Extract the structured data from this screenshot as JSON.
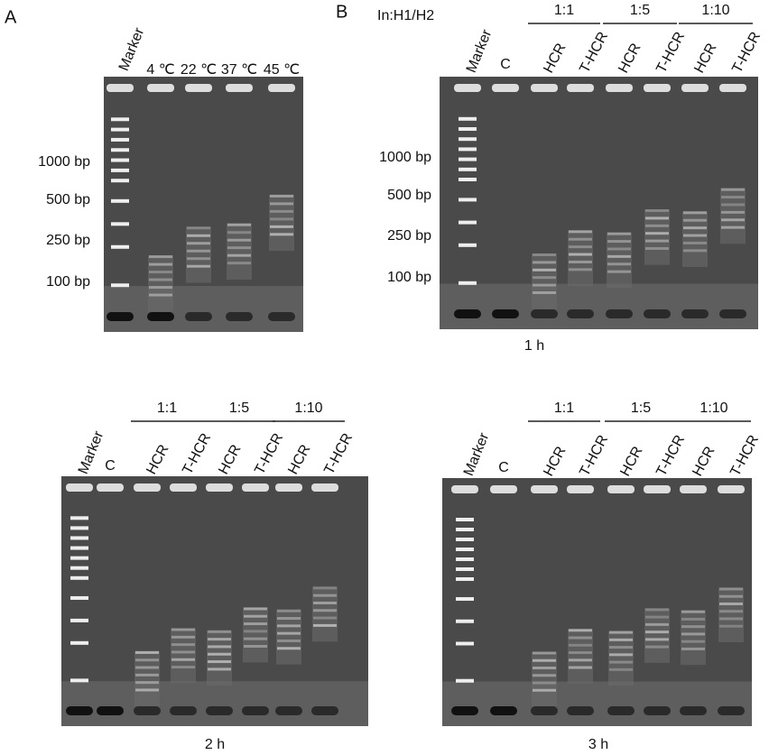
{
  "panels": [
    {
      "letter": "A",
      "marker": "Marker",
      "lanes": [
        "4 ℃",
        "22 ℃",
        "37 ℃",
        "45 ℃"
      ],
      "size_labels": [
        "1000 bp",
        "500 bp",
        "250 bp",
        "100 bp"
      ]
    },
    {
      "letter": "B",
      "condition": "In:H1/H2",
      "marker": "Marker",
      "control": "C",
      "groups": [
        {
          "ratio": "1:1",
          "lanes": [
            "HCR",
            "T-HCR"
          ]
        },
        {
          "ratio": "1:5",
          "lanes": [
            "HCR",
            "T-HCR"
          ]
        },
        {
          "ratio": "1:10",
          "lanes": [
            "HCR",
            "T-HCR"
          ]
        }
      ],
      "size_labels": [
        "1000 bp",
        "500 bp",
        "250 bp",
        "100 bp"
      ],
      "caption": "1 h"
    },
    {
      "marker": "Marker",
      "control": "C",
      "groups": [
        {
          "ratio": "1:1",
          "lanes": [
            "HCR",
            "T-HCR"
          ]
        },
        {
          "ratio": "1:5",
          "lanes": [
            "HCR",
            "T-HCR"
          ]
        },
        {
          "ratio": "1:10",
          "lanes": [
            "HCR",
            "T-HCR"
          ]
        }
      ],
      "caption": "2 h"
    },
    {
      "marker": "Marker",
      "control": "C",
      "groups": [
        {
          "ratio": "1:1",
          "lanes": [
            "HCR",
            "T-HCR"
          ]
        },
        {
          "ratio": "1:5",
          "lanes": [
            "HCR",
            "T-HCR"
          ]
        },
        {
          "ratio": "1:10",
          "lanes": [
            "HCR",
            "T-HCR"
          ]
        }
      ],
      "caption": "3 h"
    }
  ]
}
